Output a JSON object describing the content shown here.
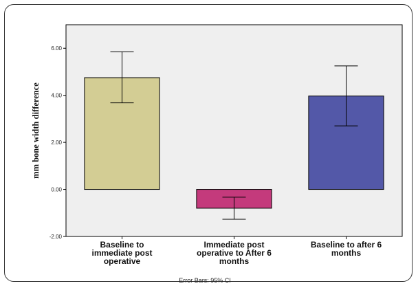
{
  "chart_data": {
    "type": "bar",
    "categories": [
      [
        "Baseline to",
        "immediate post",
        "operative"
      ],
      [
        "Immediate post",
        "operative to After 6",
        "months"
      ],
      [
        "Baseline to after 6",
        "months"
      ]
    ],
    "values": [
      4.75,
      -0.8,
      3.97
    ],
    "error_low": [
      3.68,
      -1.27,
      2.7
    ],
    "error_high": [
      5.85,
      -0.33,
      5.25
    ],
    "colors": [
      "#d3cd94",
      "#c43a7c",
      "#5358a8"
    ],
    "ylabel": "mm bone width difference",
    "ylim": [
      -2.0,
      7.0
    ],
    "yticks": [
      "-2.00",
      "0.00",
      "2.00",
      "4.00",
      "6.00"
    ],
    "ytick_values": [
      -2,
      0,
      2,
      4,
      6
    ],
    "footnote": "Error Bars: 95% CI",
    "grid": false
  }
}
